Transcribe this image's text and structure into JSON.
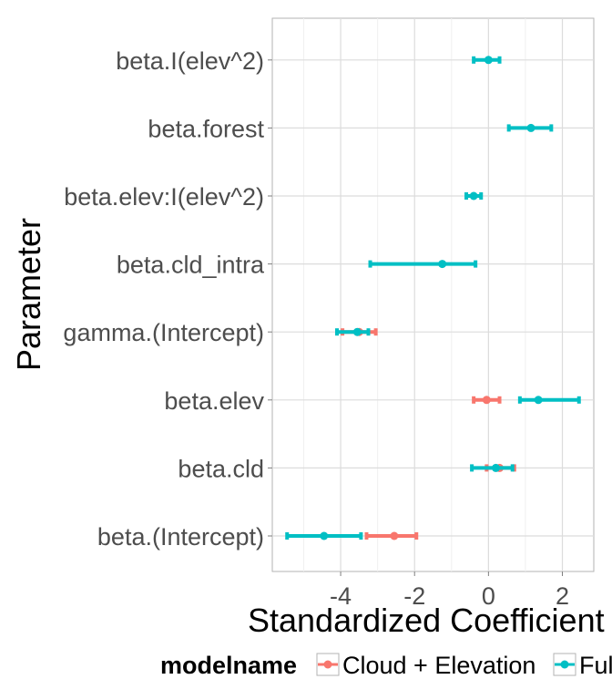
{
  "chart_data": {
    "type": "errorbar",
    "title": "",
    "xlabel": "Standardized Coefficient",
    "ylabel": "Parameter",
    "xlim": [
      -5.85,
      2.85
    ],
    "x_ticks": [
      -4,
      -2,
      0,
      2
    ],
    "x_tick_labels": [
      "-4",
      "-2",
      "0",
      "2"
    ],
    "grid": true,
    "legend_position": "bottom",
    "categories": [
      "beta.(Intercept)",
      "beta.cld",
      "beta.elev",
      "gamma.(Intercept)",
      "beta.cld_intra",
      "beta.elev:I(elev^2)",
      "beta.forest",
      "beta.I(elev^2)"
    ],
    "series": [
      {
        "name": "Cloud + Elevation",
        "color": "#F8766D",
        "points": [
          {
            "category": "beta.(Intercept)",
            "estimate": -2.55,
            "lower": -3.3,
            "upper": -1.95
          },
          {
            "category": "beta.cld",
            "estimate": 0.3,
            "lower": -0.05,
            "upper": 0.7
          },
          {
            "category": "beta.elev",
            "estimate": -0.05,
            "lower": -0.4,
            "upper": 0.3
          },
          {
            "category": "gamma.(Intercept)",
            "estimate": -3.5,
            "lower": -3.95,
            "upper": -3.05
          }
        ]
      },
      {
        "name": "Full",
        "color": "#00BFC4",
        "points": [
          {
            "category": "beta.(Intercept)",
            "estimate": -4.45,
            "lower": -5.45,
            "upper": -3.45
          },
          {
            "category": "beta.cld",
            "estimate": 0.2,
            "lower": -0.45,
            "upper": 0.65
          },
          {
            "category": "beta.elev",
            "estimate": 1.35,
            "lower": 0.85,
            "upper": 2.45
          },
          {
            "category": "gamma.(Intercept)",
            "estimate": -3.55,
            "lower": -4.1,
            "upper": -3.25
          },
          {
            "category": "beta.cld_intra",
            "estimate": -1.25,
            "lower": -3.2,
            "upper": -0.35
          },
          {
            "category": "beta.elev:I(elev^2)",
            "estimate": -0.4,
            "lower": -0.6,
            "upper": -0.2
          },
          {
            "category": "beta.forest",
            "estimate": 1.15,
            "lower": 0.55,
            "upper": 1.7
          },
          {
            "category": "beta.I(elev^2)",
            "estimate": 0.0,
            "lower": -0.4,
            "upper": 0.3
          }
        ]
      }
    ]
  },
  "legend": {
    "title": "modelname",
    "items": [
      {
        "label": "Cloud + Elevation",
        "color": "#F8766D"
      },
      {
        "label": "Full",
        "color": "#00BFC4"
      }
    ]
  }
}
